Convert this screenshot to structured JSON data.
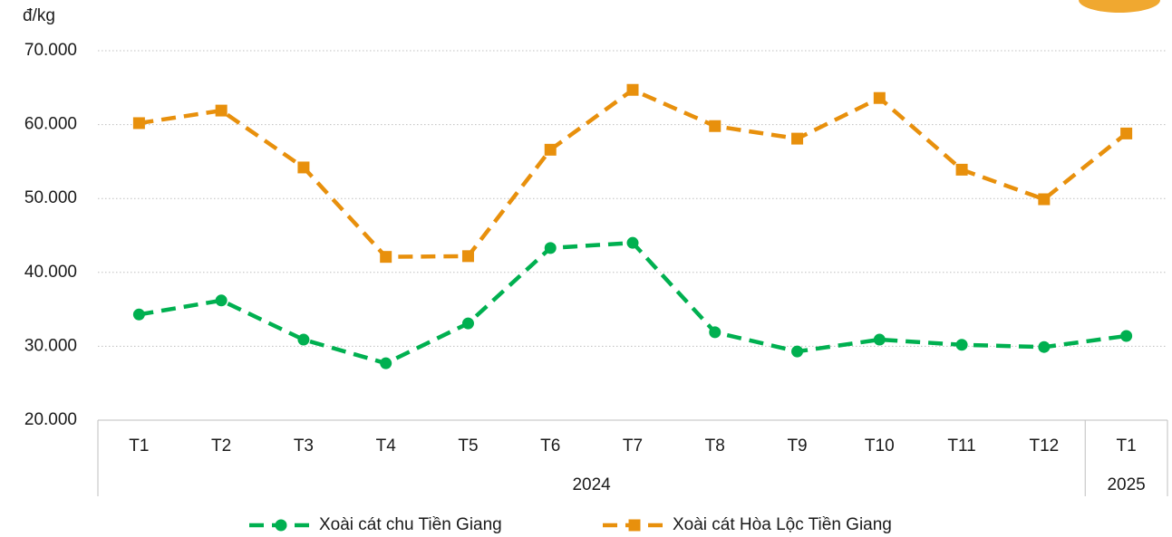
{
  "chart_data": {
    "type": "line",
    "y_label": "đ/kg",
    "categories": [
      "T1",
      "T2",
      "T3",
      "T4",
      "T5",
      "T6",
      "T7",
      "T8",
      "T9",
      "T10",
      "T11",
      "T12",
      "T1"
    ],
    "years": [
      "2024",
      "2024",
      "2024",
      "2024",
      "2024",
      "2024",
      "2024",
      "2024",
      "2024",
      "2024",
      "2024",
      "2024",
      "2025"
    ],
    "series": [
      {
        "name": "Xoài cát chu Tiền Giang",
        "color": "#00b050",
        "marker": "circle",
        "values": [
          34300,
          36200,
          30900,
          27700,
          33100,
          43300,
          44000,
          31900,
          29300,
          30900,
          30200,
          29900,
          31400
        ]
      },
      {
        "name": "Xoài cát Hòa Lộc Tiền Giang",
        "color": "#e8900c",
        "marker": "square",
        "values": [
          60200,
          61900,
          54200,
          42100,
          42200,
          56600,
          64700,
          59800,
          58100,
          63600,
          53900,
          49900,
          58800
        ]
      }
    ],
    "ylim": [
      20000,
      70000
    ],
    "yticks": [
      {
        "value": 20000,
        "label": "20.000"
      },
      {
        "value": 30000,
        "label": "30.000"
      },
      {
        "value": 40000,
        "label": "40.000"
      },
      {
        "value": 50000,
        "label": "50.000"
      },
      {
        "value": 60000,
        "label": "60.000"
      },
      {
        "value": 70000,
        "label": "70.000"
      }
    ],
    "grid": true,
    "legend": "bottom"
  }
}
